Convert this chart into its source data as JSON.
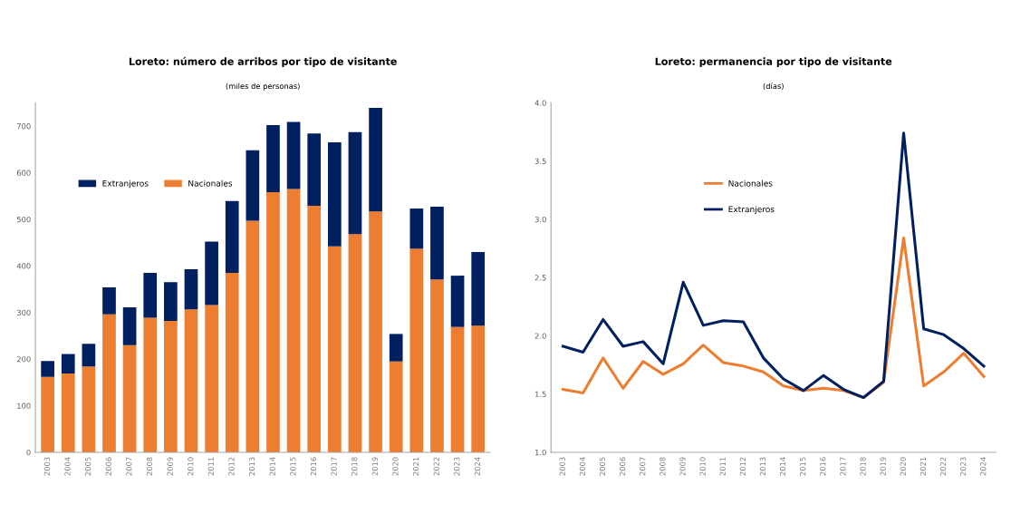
{
  "chart_data": [
    {
      "type": "bar",
      "title": "Loreto: número de arribos por tipo de visitante",
      "subtitle": "(miles de personas)",
      "stacked": true,
      "legend": "top left",
      "grid": false,
      "categories": [
        "2003",
        "2004",
        "2005",
        "2006",
        "2007",
        "2008",
        "2009",
        "2010",
        "2011",
        "2012",
        "2013",
        "2014",
        "2015",
        "2016",
        "2017",
        "2018",
        "2019",
        "2020",
        "2021",
        "2022",
        "2023",
        "2024"
      ],
      "series": [
        {
          "name": "Nacionales",
          "color": "#ed7d31",
          "values": [
            162,
            169,
            184,
            296,
            230,
            289,
            282,
            307,
            316,
            385,
            497,
            558,
            565,
            529,
            442,
            468,
            517,
            195,
            437,
            371,
            269,
            272
          ]
        },
        {
          "name": "Extranjeros",
          "color": "#002060",
          "values": [
            34,
            42,
            49,
            58,
            81,
            96,
            83,
            86,
            136,
            154,
            151,
            144,
            144,
            155,
            223,
            219,
            222,
            59,
            86,
            156,
            110,
            158
          ]
        }
      ],
      "ylim": [
        0,
        750
      ],
      "yticks": [
        0,
        100,
        200,
        300,
        400,
        500,
        600,
        700
      ]
    },
    {
      "type": "line",
      "title": "Loreto: permanencia por tipo de visitante",
      "subtitle": "(días)",
      "legend": "top left",
      "grid": false,
      "marker": "none",
      "line_style": "solid",
      "categories": [
        "2003",
        "2004",
        "2005",
        "2006",
        "2007",
        "2008",
        "2009",
        "2010",
        "2011",
        "2012",
        "2013",
        "2014",
        "2015",
        "2016",
        "2017",
        "2018",
        "2019",
        "2020",
        "2021",
        "2022",
        "2023",
        "2024"
      ],
      "series": [
        {
          "name": "Nacionales",
          "color": "#ed7d31",
          "values": [
            1.54,
            1.51,
            1.81,
            1.55,
            1.78,
            1.67,
            1.76,
            1.92,
            1.77,
            1.74,
            1.69,
            1.57,
            1.53,
            1.55,
            1.53,
            1.47,
            1.6,
            2.84,
            1.57,
            1.69,
            1.85,
            1.65
          ]
        },
        {
          "name": "Extranjeros",
          "color": "#002060",
          "values": [
            1.91,
            1.86,
            2.14,
            1.91,
            1.95,
            1.76,
            2.46,
            2.09,
            2.13,
            2.12,
            1.81,
            1.63,
            1.53,
            1.66,
            1.54,
            1.47,
            1.61,
            3.74,
            2.06,
            2.01,
            1.89,
            1.74
          ]
        }
      ],
      "ylim": [
        1.0,
        4.0
      ],
      "yticks": [
        {
          "value": 1.0,
          "label": "1.0"
        },
        {
          "value": 1.5,
          "label": "1.5"
        },
        {
          "value": 2.0,
          "label": "2.0"
        },
        {
          "value": 2.5,
          "label": "2.5"
        },
        {
          "value": 3.0,
          "label": "3.0"
        },
        {
          "value": 3.5,
          "label": "3.5"
        },
        {
          "value": 4.0,
          "label": "4.0"
        }
      ]
    }
  ]
}
